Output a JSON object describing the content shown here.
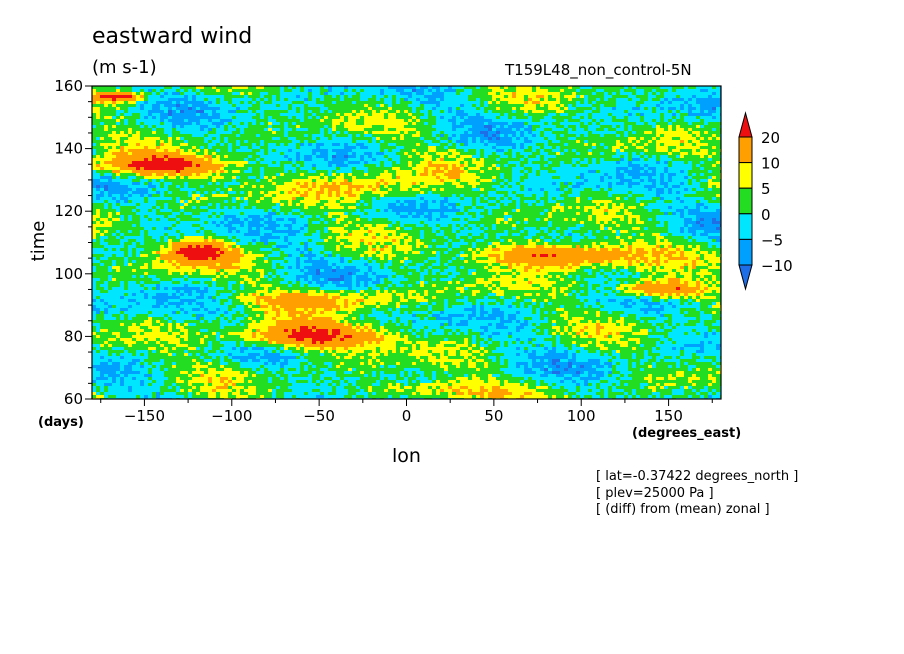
{
  "title": "eastward wind",
  "units": "(m s-1)",
  "run_name": "T159L48_non_control-5N",
  "notes": [
    "[ lat=-0.37422 degrees_north ]",
    "[ plev=25000 Pa ]",
    "[ (diff) from (mean) zonal ]"
  ],
  "chart_data": {
    "type": "heatmap",
    "title": "eastward wind",
    "xlabel": "lon",
    "ylabel": "time",
    "x_unit": "(degrees_east)",
    "y_unit": "(days)",
    "xlim": [
      -180,
      180
    ],
    "ylim": [
      60,
      160
    ],
    "xticks": [
      -150,
      -100,
      -50,
      0,
      50,
      100,
      150
    ],
    "yticks": [
      60,
      80,
      100,
      120,
      140,
      160
    ],
    "colorbar": {
      "levels": [
        -10,
        -5,
        0,
        5,
        10,
        20
      ],
      "colors": [
        "#1e6ee8",
        "#00a0ff",
        "#00e6ff",
        "#22dd22",
        "#ffff00",
        "#ffa000",
        "#ee1010"
      ],
      "extend": "both"
    },
    "features": [
      {
        "x": [
          -180,
          -150
        ],
        "y": [
          155,
          158
        ],
        "value": "above 20"
      },
      {
        "x": [
          -180,
          -100
        ],
        "y": [
          131,
          138
        ],
        "value": "above 20"
      },
      {
        "x": [
          -140,
          -100
        ],
        "y": [
          103,
          111
        ],
        "value": "above 20"
      },
      {
        "x": [
          -100,
          -10
        ],
        "y": [
          76,
          84
        ],
        "value": "above 20"
      },
      {
        "x": [
          40,
          130
        ],
        "y": [
          102,
          110
        ],
        "value": "above 20"
      },
      {
        "x": [
          120,
          170
        ],
        "y": [
          92,
          98
        ],
        "value": "above 20"
      },
      {
        "x": [
          -90,
          0
        ],
        "y": [
          89,
          95
        ],
        "value": "10 to 20"
      },
      {
        "x": [
          -50,
          20
        ],
        "y": [
          123,
          133
        ],
        "value": "10 to 20"
      },
      {
        "x": [
          -30,
          60
        ],
        "y": [
          60,
          66
        ],
        "value": "10 to 20"
      }
    ]
  }
}
